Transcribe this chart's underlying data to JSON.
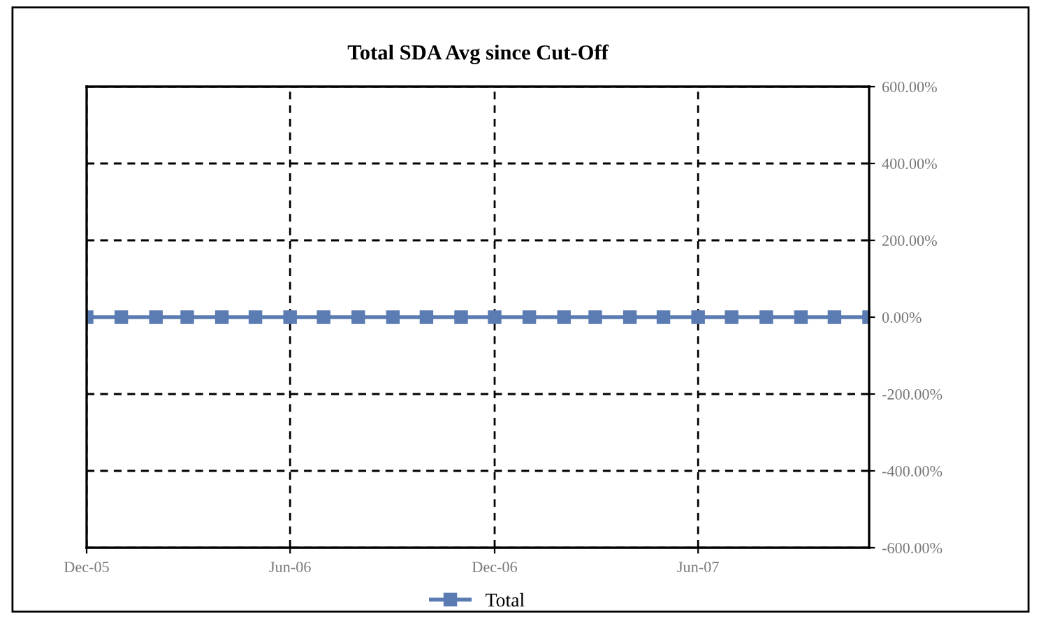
{
  "chart_data": {
    "type": "line",
    "title": "Total SDA Avg since Cut-Off",
    "x": [
      "2005-12",
      "2006-01",
      "2006-02",
      "2006-03",
      "2006-04",
      "2006-05",
      "2006-06",
      "2006-07",
      "2006-08",
      "2006-09",
      "2006-10",
      "2006-11",
      "2006-12",
      "2007-01",
      "2007-02",
      "2007-03",
      "2007-04",
      "2007-05",
      "2007-06",
      "2007-07",
      "2007-08",
      "2007-09",
      "2007-10",
      "2007-11"
    ],
    "series": [
      {
        "name": "Total",
        "color": "#5b7cb3",
        "values": [
          0,
          0,
          0,
          0,
          0,
          0,
          0,
          0,
          0,
          0,
          0,
          0,
          0,
          0,
          0,
          0,
          0,
          0,
          0,
          0,
          0,
          0,
          0,
          0
        ]
      }
    ],
    "xlim": [
      "2005-12",
      "2007-11"
    ],
    "xticks": [
      {
        "value": "2005-12",
        "label": "Dec-05"
      },
      {
        "value": "2006-06",
        "label": "Jun-06"
      },
      {
        "value": "2006-12",
        "label": "Dec-06"
      },
      {
        "value": "2007-06",
        "label": "Jun-07"
      }
    ],
    "ylim": [
      -600,
      600
    ],
    "yticks": [
      {
        "value": 600,
        "label": "600.00%"
      },
      {
        "value": 400,
        "label": "400.00%"
      },
      {
        "value": 200,
        "label": "200.00%"
      },
      {
        "value": 0,
        "label": "0.00%"
      },
      {
        "value": -200,
        "label": "-200.00%"
      },
      {
        "value": -400,
        "label": "-400.00%"
      },
      {
        "value": -600,
        "label": "-600.00%"
      }
    ],
    "grid": true,
    "legend": "bottom",
    "marker": "square",
    "line_style": "solid"
  }
}
